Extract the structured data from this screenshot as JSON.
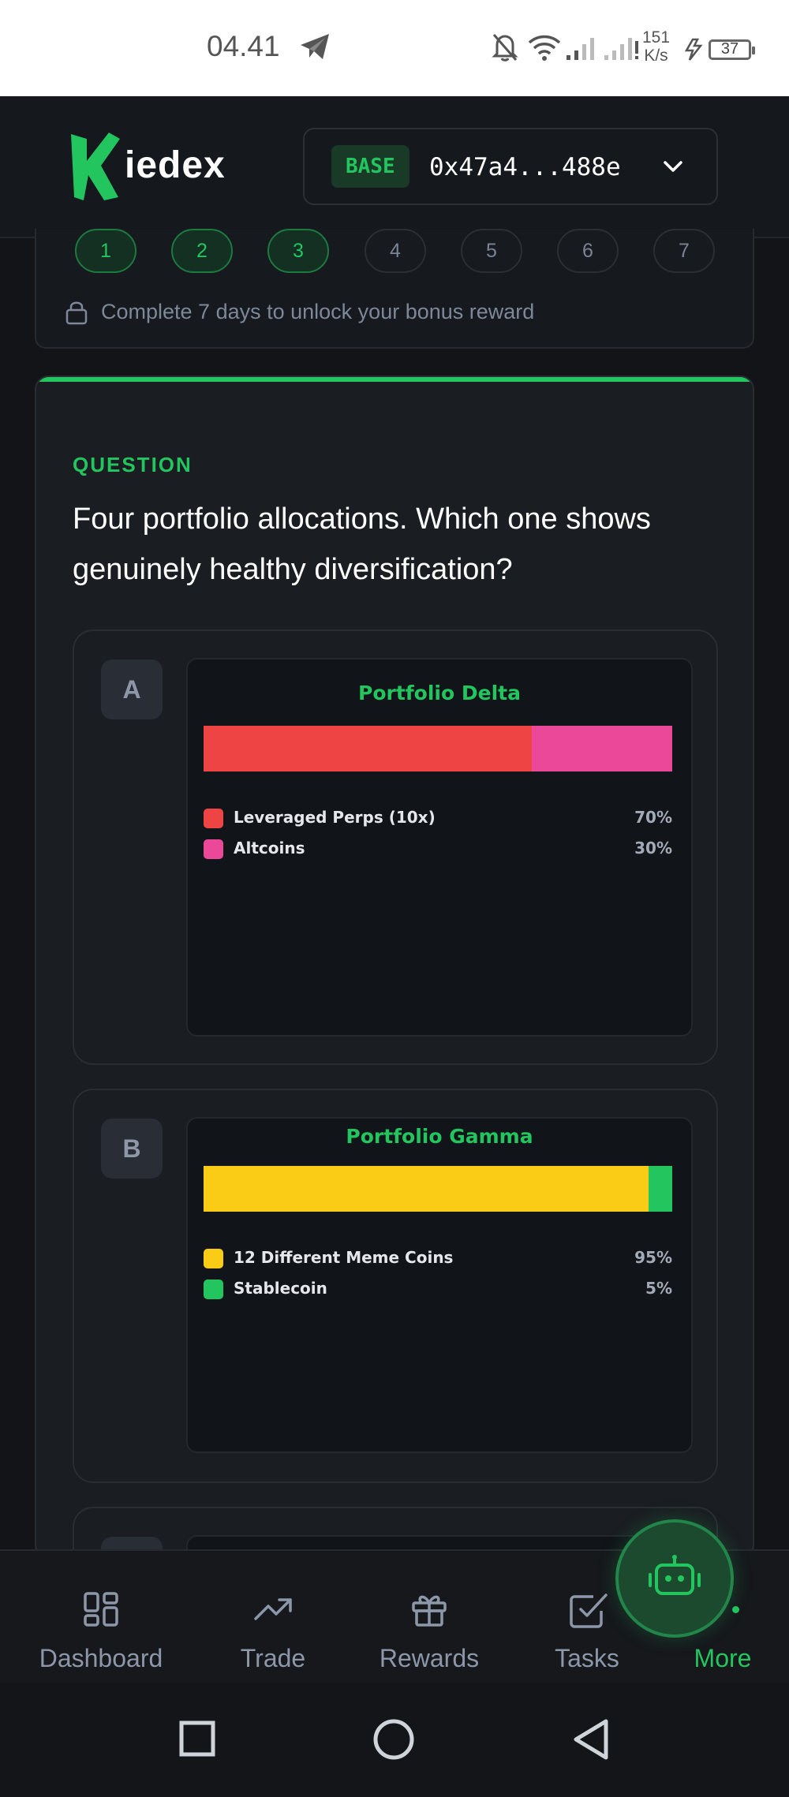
{
  "status_bar": {
    "time": "04.41",
    "speed_value": "151",
    "speed_unit": "K/s",
    "battery": "37",
    "icons": [
      "telegram-icon",
      "bell-off-icon",
      "wifi-icon",
      "signal-icon",
      "signal-icon",
      "charging-icon",
      "battery-icon"
    ]
  },
  "header": {
    "logo_text": "iedex",
    "chain_badge": "BASE",
    "wallet_address": "0x47a4...488e",
    "accent": "#22c55e"
  },
  "streak": {
    "days": [
      {
        "label": "1",
        "done": true
      },
      {
        "label": "2",
        "done": true
      },
      {
        "label": "3",
        "done": true
      },
      {
        "label": "4",
        "done": false
      },
      {
        "label": "5",
        "done": false
      },
      {
        "label": "6",
        "done": false
      },
      {
        "label": "7",
        "done": false
      }
    ],
    "lock_message": "Complete 7 days to unlock your bonus reward"
  },
  "question": {
    "label": "QUESTION",
    "text": "Four portfolio allocations. Which one shows genuinely healthy diversification?"
  },
  "options": [
    {
      "letter": "A"
    },
    {
      "letter": "B"
    }
  ],
  "chart_data": [
    {
      "type": "bar",
      "title": "Portfolio Delta",
      "stacked": true,
      "orientation": "horizontal",
      "series": [
        {
          "name": "Leveraged Perps (10x)",
          "values": [
            70
          ],
          "label": "70%",
          "color": "#ef4444"
        },
        {
          "name": "Altcoins",
          "values": [
            30
          ],
          "label": "30%",
          "color": "#ec4899"
        }
      ]
    },
    {
      "type": "bar",
      "title": "Portfolio Gamma",
      "stacked": true,
      "orientation": "horizontal",
      "series": [
        {
          "name": "12 Different Meme Coins",
          "values": [
            95
          ],
          "label": "95%",
          "color": "#facc15"
        },
        {
          "name": "Stablecoin",
          "values": [
            5
          ],
          "label": "5%",
          "color": "#22c55e"
        }
      ]
    }
  ],
  "bottom_nav": {
    "items": [
      {
        "label": "Dashboard",
        "icon": "dashboard-icon"
      },
      {
        "label": "Trade",
        "icon": "trend-up-icon"
      },
      {
        "label": "Rewards",
        "icon": "gift-icon"
      },
      {
        "label": "Tasks",
        "icon": "checkbox-icon"
      },
      {
        "label": "More",
        "icon": "more-icon",
        "active": true
      }
    ],
    "assistant_icon": "robot-icon"
  },
  "system_nav": [
    "recents-icon",
    "home-icon",
    "back-icon"
  ]
}
